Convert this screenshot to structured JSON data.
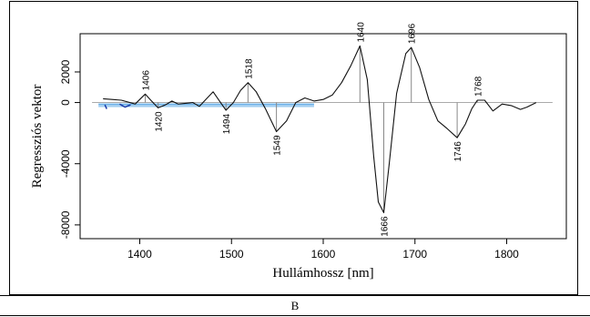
{
  "caption": "B",
  "chart_data": {
    "type": "line",
    "xlabel": "Hullámhossz [nm]",
    "ylabel": "Regressziós vektor",
    "xlim": [
      1335,
      1865
    ],
    "ylim": [
      -8900,
      4500
    ],
    "xticks": [
      1400,
      1500,
      1600,
      1700,
      1800
    ],
    "yticks": [
      2000,
      0,
      -4000,
      -8000
    ],
    "ytick_labels": [
      "2000",
      "0",
      "-4000",
      "-8000"
    ],
    "grid": false,
    "zero_line_color": "#aaaaaa",
    "overlay_color": "#6ab0e8",
    "series": [
      {
        "x": [
          1360,
          1380,
          1395,
          1400,
          1406,
          1412,
          1420,
          1428,
          1435,
          1442,
          1450,
          1458,
          1465,
          1472,
          1480,
          1487,
          1494,
          1502,
          1510,
          1518,
          1527,
          1537,
          1549,
          1560,
          1570,
          1580,
          1590,
          1600,
          1610,
          1620,
          1630,
          1640,
          1648,
          1655,
          1660,
          1666,
          1672,
          1680,
          1690,
          1696,
          1705,
          1715,
          1725,
          1735,
          1746,
          1755,
          1762,
          1768,
          1776,
          1785,
          1795,
          1805,
          1815,
          1822,
          1832
        ],
        "y": [
          250,
          150,
          -100,
          200,
          550,
          150,
          -350,
          -150,
          100,
          -100,
          -50,
          0,
          -250,
          200,
          700,
          100,
          -500,
          0,
          800,
          1300,
          700,
          -400,
          -1900,
          -1200,
          0,
          300,
          100,
          200,
          500,
          1300,
          2400,
          3700,
          1500,
          -3500,
          -6500,
          -7200,
          -4000,
          600,
          3200,
          3600,
          2300,
          200,
          -1200,
          -1700,
          -2300,
          -1400,
          -400,
          150,
          150,
          -550,
          -100,
          -200,
          -450,
          -300,
          0
        ]
      }
    ],
    "annotations": [
      {
        "label": "1406",
        "x": 1406,
        "y": 550
      },
      {
        "label": "1420",
        "x": 1420,
        "y": -350
      },
      {
        "label": "1494",
        "x": 1494,
        "y": -500
      },
      {
        "label": "1518",
        "x": 1518,
        "y": 1300
      },
      {
        "label": "1549",
        "x": 1549,
        "y": -1900
      },
      {
        "label": "1640",
        "x": 1640,
        "y": 3700
      },
      {
        "label": "1666",
        "x": 1666,
        "y": -7200
      },
      {
        "label": "1696",
        "x": 1696,
        "y": 3600
      },
      {
        "label": "1746",
        "x": 1746,
        "y": -2300
      },
      {
        "label": "1768",
        "x": 1768,
        "y": 150
      }
    ]
  }
}
